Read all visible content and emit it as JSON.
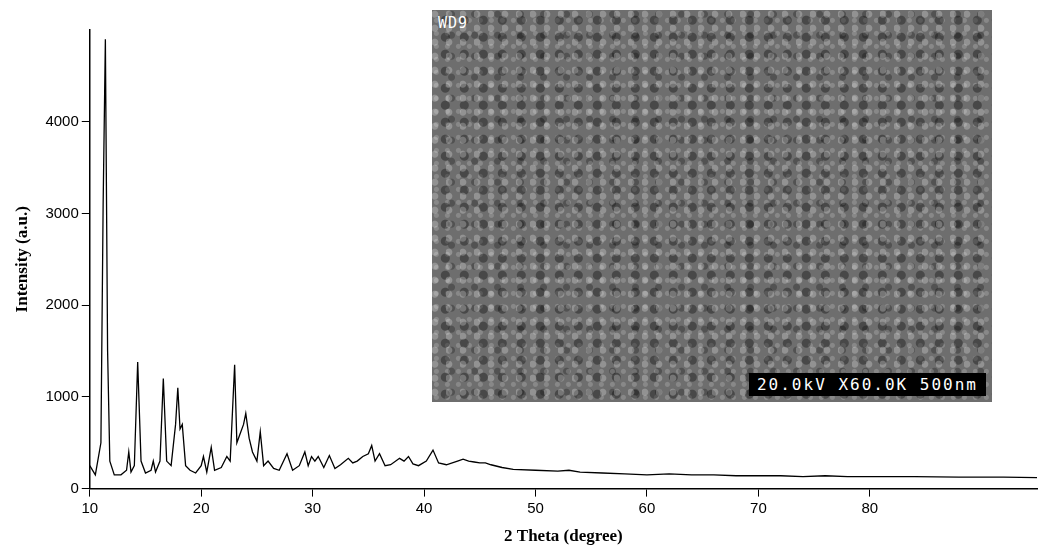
{
  "chart_data": {
    "type": "line",
    "x_label": "2 Theta (degree)",
    "y_label": "Intensity (a.u.)",
    "color": "#000000",
    "grid": false,
    "x": [
      10.0,
      10.5,
      11.0,
      11.2,
      11.4,
      11.6,
      11.8,
      12.2,
      12.8,
      13.3,
      13.5,
      13.7,
      14.0,
      14.3,
      14.6,
      15.0,
      15.5,
      15.7,
      15.9,
      16.3,
      16.6,
      16.9,
      17.3,
      17.7,
      17.9,
      18.1,
      18.3,
      18.6,
      19.0,
      19.5,
      20.0,
      20.2,
      20.5,
      20.9,
      21.2,
      21.8,
      22.3,
      22.6,
      23.0,
      23.2,
      23.5,
      23.8,
      24.0,
      24.3,
      24.6,
      25.0,
      25.3,
      25.6,
      26.0,
      26.5,
      27.0,
      27.7,
      28.2,
      28.8,
      29.3,
      29.6,
      29.9,
      30.2,
      30.5,
      31.0,
      31.5,
      32.0,
      32.5,
      33.2,
      33.6,
      34.0,
      34.5,
      35.0,
      35.3,
      35.6,
      36.0,
      36.5,
      37.0,
      37.8,
      38.2,
      38.6,
      39.0,
      39.5,
      40.2,
      40.8,
      41.3,
      42.0,
      43.0,
      43.5,
      44.0,
      44.5,
      45.0,
      45.5,
      46.0,
      47.0,
      48.0,
      50.0,
      52.0,
      53.0,
      54.0,
      56.0,
      58.0,
      60.0,
      62.0,
      64.0,
      66.0,
      68.0,
      70.0,
      72.0,
      74.0,
      76.0,
      78.0,
      80.0,
      81.0,
      84.0,
      88.0,
      92.0,
      95.0
    ],
    "values": [
      250,
      150,
      500,
      3100,
      4900,
      1500,
      300,
      150,
      150,
      200,
      400,
      180,
      250,
      1380,
      300,
      170,
      200,
      300,
      180,
      300,
      1200,
      300,
      250,
      700,
      1100,
      650,
      700,
      250,
      200,
      170,
      250,
      350,
      180,
      450,
      200,
      230,
      350,
      300,
      1350,
      500,
      600,
      700,
      820,
      550,
      400,
      300,
      620,
      250,
      300,
      220,
      200,
      380,
      200,
      250,
      400,
      250,
      350,
      300,
      350,
      230,
      360,
      220,
      260,
      330,
      280,
      300,
      350,
      380,
      470,
      300,
      380,
      250,
      260,
      330,
      300,
      350,
      270,
      250,
      300,
      420,
      280,
      260,
      300,
      320,
      300,
      290,
      280,
      280,
      260,
      230,
      210,
      200,
      190,
      200,
      180,
      170,
      160,
      150,
      160,
      150,
      150,
      140,
      140,
      140,
      130,
      140,
      130,
      130,
      130,
      130,
      125,
      125,
      120
    ],
    "xlim": [
      10,
      95
    ],
    "xticks": [
      10,
      20,
      30,
      40,
      50,
      60,
      70,
      80
    ],
    "ylim": [
      0,
      5000
    ],
    "yticks": [
      0,
      1000,
      2000,
      3000,
      4000
    ]
  },
  "inset": {
    "corner_label": "WD9",
    "info_bar": "20.0kV X60.0K 500nm"
  }
}
